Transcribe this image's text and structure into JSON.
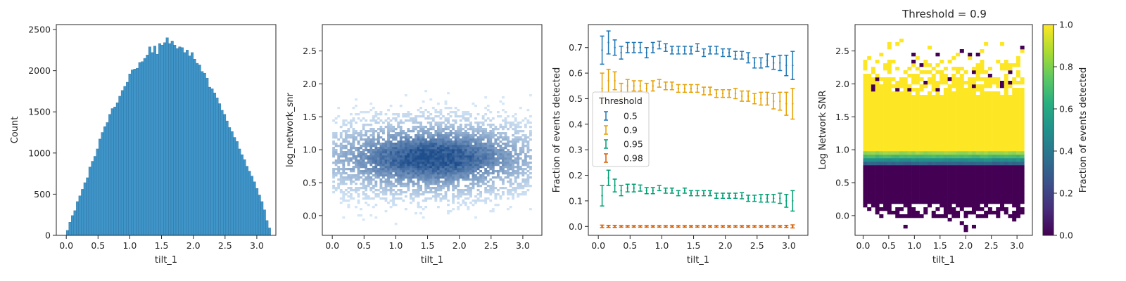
{
  "chart_data": [
    {
      "type": "bar",
      "xlabel": "tilt_1",
      "ylabel": "Count",
      "xlim": [
        -0.157,
        3.3
      ],
      "ylim": [
        0,
        2560
      ],
      "xticks": [
        "0.0",
        "0.5",
        "1.0",
        "1.5",
        "2.0",
        "2.5",
        "3.0"
      ],
      "yticks": [
        "0",
        "500",
        "1000",
        "1500",
        "2000",
        "2500"
      ],
      "bin_start": 0.0,
      "bin_width": 0.03925,
      "values": [
        60,
        160,
        240,
        300,
        410,
        480,
        560,
        640,
        700,
        830,
        900,
        960,
        1050,
        1170,
        1250,
        1320,
        1370,
        1470,
        1540,
        1560,
        1610,
        1690,
        1760,
        1810,
        1860,
        1960,
        2010,
        2020,
        2030,
        2100,
        2110,
        2150,
        2190,
        2290,
        2220,
        2300,
        2200,
        2330,
        2310,
        2340,
        2400,
        2330,
        2360,
        2310,
        2270,
        2290,
        2280,
        2220,
        2250,
        2180,
        2220,
        2140,
        2090,
        2070,
        1990,
        1970,
        1910,
        1800,
        1780,
        1730,
        1670,
        1600,
        1520,
        1470,
        1390,
        1310,
        1260,
        1190,
        1140,
        1050,
        980,
        920,
        840,
        780,
        720,
        650,
        570,
        490,
        410,
        310,
        180,
        90
      ],
      "bar_color": "#3f94c8"
    },
    {
      "type": "heatmap",
      "xlabel": "tilt_1",
      "ylabel": "log_network_snr",
      "xlim": [
        -0.157,
        3.3
      ],
      "ylim": [
        -0.3,
        2.9
      ],
      "xticks": [
        "0.0",
        "0.5",
        "1.0",
        "1.5",
        "2.0",
        "2.5",
        "3.0"
      ],
      "yticks": [
        "0.0",
        "0.5",
        "1.0",
        "1.5",
        "2.0",
        "2.5"
      ],
      "density_center": [
        1.57,
        0.88
      ],
      "density_spread": [
        1.0,
        0.3
      ],
      "color_low": "#d7e8f8",
      "color_high": "#1f4e8c"
    },
    {
      "type": "scatter",
      "xlabel": "tilt_1",
      "ylabel": "Fraction of events detected",
      "xlim": [
        -0.157,
        3.3
      ],
      "ylim": [
        -0.035,
        0.79
      ],
      "xticks": [
        "0.0",
        "0.5",
        "1.0",
        "1.5",
        "2.0",
        "2.5",
        "3.0"
      ],
      "yticks": [
        "0.0",
        "0.1",
        "0.2",
        "0.3",
        "0.4",
        "0.5",
        "0.6",
        "0.7"
      ],
      "legend_title": "Threshold",
      "legend_position": "center-left",
      "x": [
        0.06,
        0.16,
        0.26,
        0.36,
        0.46,
        0.56,
        0.66,
        0.76,
        0.86,
        0.96,
        1.06,
        1.16,
        1.26,
        1.36,
        1.46,
        1.56,
        1.66,
        1.76,
        1.86,
        1.96,
        2.06,
        2.16,
        2.26,
        2.36,
        2.46,
        2.56,
        2.66,
        2.76,
        2.86,
        2.96,
        3.06
      ],
      "series": [
        {
          "name": "0.5",
          "color": "#1f77b4",
          "values": [
            0.69,
            0.72,
            0.7,
            0.68,
            0.7,
            0.7,
            0.7,
            0.68,
            0.7,
            0.71,
            0.7,
            0.69,
            0.69,
            0.69,
            0.69,
            0.7,
            0.68,
            0.69,
            0.69,
            0.68,
            0.68,
            0.67,
            0.67,
            0.66,
            0.64,
            0.64,
            0.65,
            0.64,
            0.64,
            0.63,
            0.63
          ],
          "errors": [
            0.055,
            0.045,
            0.03,
            0.025,
            0.02,
            0.02,
            0.02,
            0.02,
            0.02,
            0.015,
            0.015,
            0.015,
            0.015,
            0.015,
            0.015,
            0.015,
            0.015,
            0.015,
            0.015,
            0.015,
            0.015,
            0.015,
            0.015,
            0.02,
            0.02,
            0.02,
            0.025,
            0.025,
            0.03,
            0.04,
            0.055
          ]
        },
        {
          "name": "0.9",
          "color": "#e69f00",
          "values": [
            0.54,
            0.57,
            0.57,
            0.53,
            0.55,
            0.55,
            0.55,
            0.54,
            0.55,
            0.56,
            0.55,
            0.55,
            0.54,
            0.54,
            0.54,
            0.54,
            0.53,
            0.53,
            0.52,
            0.52,
            0.52,
            0.52,
            0.51,
            0.51,
            0.5,
            0.5,
            0.5,
            0.49,
            0.49,
            0.48,
            0.48
          ],
          "errors": [
            0.06,
            0.045,
            0.035,
            0.03,
            0.025,
            0.02,
            0.02,
            0.02,
            0.02,
            0.015,
            0.015,
            0.015,
            0.015,
            0.015,
            0.015,
            0.015,
            0.015,
            0.015,
            0.015,
            0.015,
            0.015,
            0.02,
            0.02,
            0.02,
            0.02,
            0.025,
            0.025,
            0.03,
            0.035,
            0.045,
            0.06
          ]
        },
        {
          "name": "0.95",
          "color": "#009e73",
          "values": [
            0.12,
            0.19,
            0.16,
            0.14,
            0.15,
            0.15,
            0.15,
            0.14,
            0.14,
            0.15,
            0.14,
            0.14,
            0.13,
            0.14,
            0.13,
            0.13,
            0.13,
            0.13,
            0.12,
            0.12,
            0.12,
            0.12,
            0.12,
            0.11,
            0.11,
            0.11,
            0.11,
            0.11,
            0.11,
            0.1,
            0.1
          ],
          "errors": [
            0.04,
            0.03,
            0.025,
            0.02,
            0.015,
            0.015,
            0.012,
            0.012,
            0.012,
            0.01,
            0.01,
            0.01,
            0.01,
            0.01,
            0.01,
            0.01,
            0.01,
            0.01,
            0.01,
            0.01,
            0.01,
            0.01,
            0.012,
            0.012,
            0.012,
            0.015,
            0.015,
            0.015,
            0.02,
            0.025,
            0.04
          ]
        },
        {
          "name": "0.98",
          "color": "#d55e00",
          "values": [
            0.0,
            0.0,
            0.0,
            0.0,
            0.0,
            0.0,
            0.0,
            0.0,
            0.0,
            0.0,
            0.0,
            0.0,
            0.0,
            0.0,
            0.0,
            0.0,
            0.0,
            0.0,
            0.0,
            0.0,
            0.0,
            0.0,
            0.0,
            0.0,
            0.0,
            0.0,
            0.0,
            0.0,
            0.0,
            0.0,
            0.0
          ],
          "errors": [
            0.005,
            0.004,
            0.004,
            0.003,
            0.003,
            0.003,
            0.003,
            0.003,
            0.003,
            0.003,
            0.003,
            0.003,
            0.003,
            0.003,
            0.003,
            0.003,
            0.003,
            0.003,
            0.003,
            0.003,
            0.003,
            0.003,
            0.003,
            0.003,
            0.003,
            0.003,
            0.003,
            0.003,
            0.003,
            0.004,
            0.006
          ]
        }
      ]
    },
    {
      "type": "heatmap",
      "title": "Threshold = 0.9",
      "xlabel": "tilt_1",
      "ylabel": "Log Network SNR",
      "xlim": [
        -0.157,
        3.3
      ],
      "ylim": [
        -0.3,
        2.9
      ],
      "xticks": [
        "0.0",
        "0.5",
        "1.0",
        "1.5",
        "2.0",
        "2.5",
        "3.0"
      ],
      "yticks": [
        "0.0",
        "0.5",
        "1.0",
        "1.5",
        "2.0",
        "2.5"
      ],
      "colorbar_label": "Fraction of events detected",
      "colorbar_range": [
        0.0,
        1.0
      ],
      "colorbar_ticks": [
        "0.0",
        "0.2",
        "0.4",
        "0.6",
        "0.8",
        "1.0"
      ],
      "colormap": "viridis",
      "transition_snr": 0.85
    }
  ]
}
